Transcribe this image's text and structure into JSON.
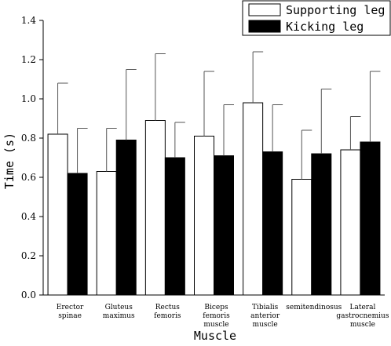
{
  "chart_data": {
    "type": "bar",
    "xlabel": "Muscle",
    "ylabel": "Time (s)",
    "ylim": [
      0.0,
      1.4
    ],
    "yticks": [
      "0.0",
      "0.2",
      "0.4",
      "0.6",
      "0.8",
      "1.0",
      "1.2",
      "1.4"
    ],
    "categories": [
      [
        "Erector",
        "spinae"
      ],
      [
        "Gluteus",
        "maximus"
      ],
      [
        "Rectus",
        "femoris"
      ],
      [
        "Biceps",
        "femoris",
        "muscle"
      ],
      [
        "Tibialis",
        "anterior",
        "muscle"
      ],
      [
        "semitendinosus"
      ],
      [
        "Lateral",
        "gastrocnemius",
        "muscle"
      ]
    ],
    "series": [
      {
        "name": "Supporting leg",
        "fill": "#ffffff",
        "values": [
          0.82,
          0.63,
          0.89,
          0.81,
          0.98,
          0.59,
          0.74
        ],
        "errors": [
          0.26,
          0.22,
          0.34,
          0.33,
          0.26,
          0.25,
          0.17
        ]
      },
      {
        "name": "Kicking leg",
        "fill": "#000000",
        "values": [
          0.62,
          0.79,
          0.7,
          0.71,
          0.73,
          0.72,
          0.78
        ],
        "errors": [
          0.23,
          0.36,
          0.18,
          0.26,
          0.24,
          0.33,
          0.36
        ]
      }
    ],
    "legend_position": "top-right",
    "grid": false
  }
}
